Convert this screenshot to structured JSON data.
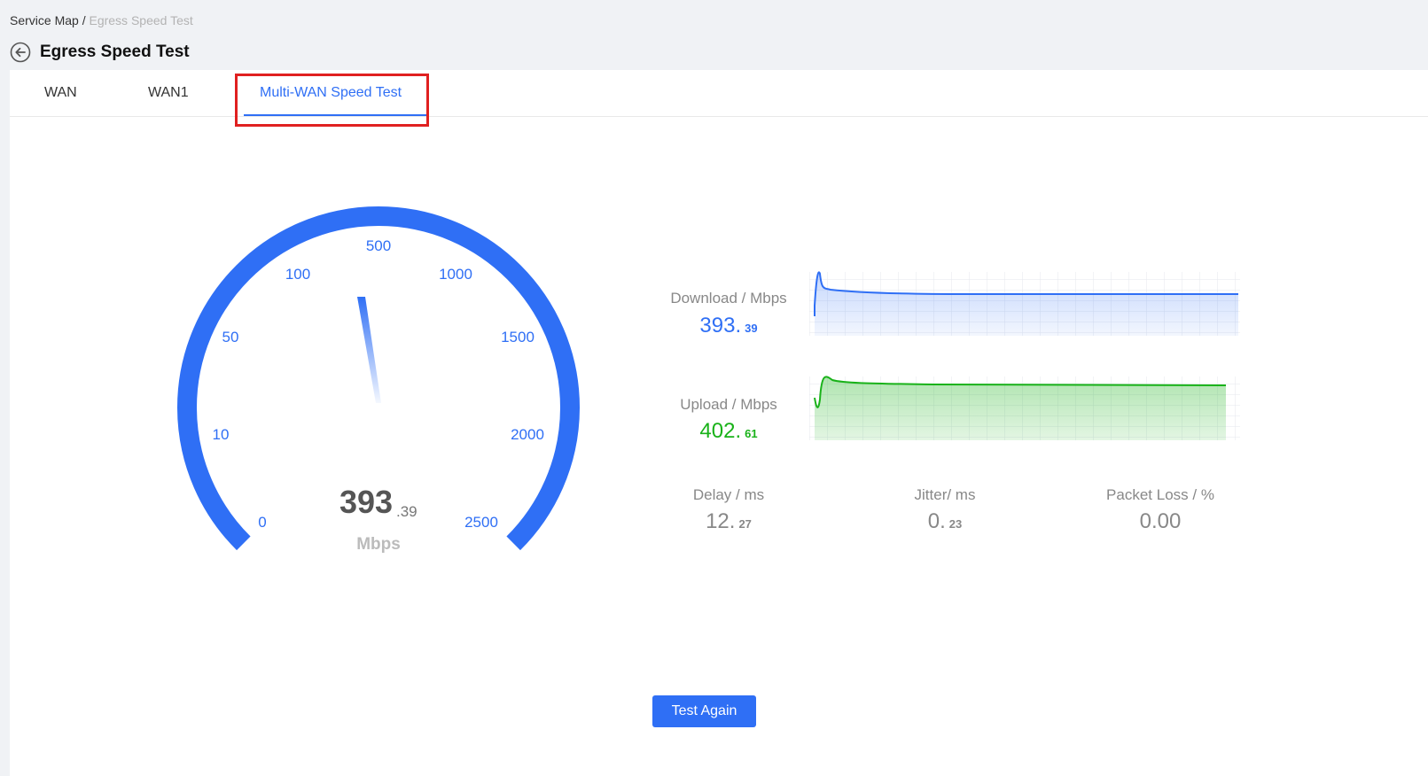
{
  "breadcrumb": {
    "parent": "Service Map",
    "separator": " / ",
    "current": "Egress Speed Test"
  },
  "page": {
    "title": "Egress Speed Test"
  },
  "tabs": [
    {
      "label": "WAN",
      "active": false
    },
    {
      "label": "WAN1",
      "active": false
    },
    {
      "label": "Multi-WAN Speed Test",
      "active": true
    }
  ],
  "gauge": {
    "scale_labels": [
      "0",
      "10",
      "50",
      "100",
      "500",
      "1000",
      "1500",
      "2000",
      "2500"
    ],
    "value_int": "393",
    "value_dec": ".39",
    "unit": "Mbps",
    "needle_value": 393.39,
    "color": "#2f6ff5"
  },
  "download": {
    "label": "Download / Mbps",
    "value_int": "393.",
    "value_dec": "39",
    "color": "#2f6ff5"
  },
  "upload": {
    "label": "Upload / Mbps",
    "value_int": "402.",
    "value_dec": "61",
    "color": "#19b219"
  },
  "stats": [
    {
      "label": "Delay / ms",
      "value_int": "12.",
      "value_dec": "27"
    },
    {
      "label": "Jitter/ ms",
      "value_int": "0.",
      "value_dec": "23"
    },
    {
      "label": "Packet Loss / %",
      "value_int": "0.00",
      "value_dec": ""
    }
  ],
  "actions": {
    "test_again": "Test Again"
  },
  "icons": {
    "back": "back-arrow-icon"
  }
}
